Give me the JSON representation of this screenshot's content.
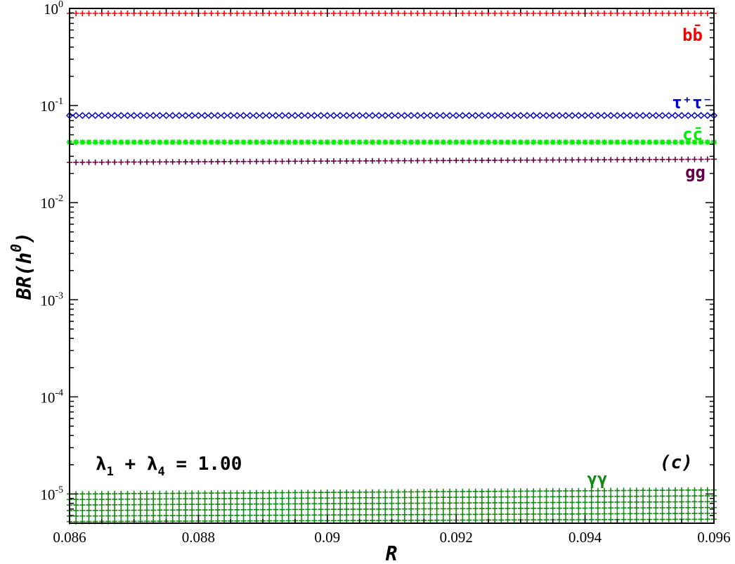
{
  "chart_data": {
    "type": "scatter",
    "xlabel": "R",
    "ylabel": "BR(h",
    "ylabel_sup": "0",
    "ylabel_close": ")",
    "xlim": [
      0.086,
      0.096
    ],
    "ylim": [
      5e-06,
      1
    ],
    "yscale": "log",
    "x_ticks": [
      "0.086",
      "0.088",
      "0.09",
      "0.092",
      "0.094",
      "0.096"
    ],
    "y_ticks": [
      {
        "base": "10",
        "exp": "0"
      },
      {
        "base": "10",
        "exp": "-1"
      },
      {
        "base": "10",
        "exp": "-2"
      },
      {
        "base": "10",
        "exp": "-3"
      },
      {
        "base": "10",
        "exp": "-4"
      },
      {
        "base": "10",
        "exp": "-5"
      }
    ],
    "series": [
      {
        "name": "bb̄",
        "color": "#ff0000",
        "marker": "plus",
        "x_range": [
          0.086,
          0.096
        ],
        "y_start": 0.89,
        "y_end": 0.89
      },
      {
        "name": "τ⁺τ⁻",
        "color": "#0000dd",
        "marker": "diamond",
        "x_range": [
          0.086,
          0.096
        ],
        "y_start": 0.079,
        "y_end": 0.079
      },
      {
        "name": "cc̄",
        "color": "#00ee00",
        "marker": "star",
        "x_range": [
          0.086,
          0.096
        ],
        "y_start": 0.042,
        "y_end": 0.042
      },
      {
        "name": "gg",
        "color": "#660044",
        "marker": "plus",
        "x_range": [
          0.086,
          0.096
        ],
        "y_start": 0.026,
        "y_end": 0.028
      },
      {
        "name": "γγ",
        "color": "#118811",
        "marker": "plus",
        "x_range": [
          0.086,
          0.096
        ],
        "y_band_start": [
          5.2e-06,
          1e-05
        ],
        "y_band_end": [
          5.5e-06,
          1.1e-05
        ]
      }
    ],
    "series_labels": [
      {
        "parts": [
          "bb",
          "̄"
        ],
        "text": "bb̄",
        "color": "#ff0000"
      },
      {
        "text": "τ⁺τ⁻",
        "color": "#0000dd"
      },
      {
        "text": "cc̄",
        "color": "#00ee00"
      },
      {
        "text": "gg",
        "color": "#660044"
      },
      {
        "text": "γγ",
        "color": "#118811"
      }
    ],
    "annotations": {
      "lambda_text": "λ₁ + λ₄ = 1.00",
      "lambda_1": "λ",
      "sub_1": "1",
      "plus": " + ",
      "lambda_4": "λ",
      "sub_4": "4",
      "equals": " = 1.00",
      "panel": "(c)"
    },
    "grid": false,
    "legend": "inline-right"
  }
}
